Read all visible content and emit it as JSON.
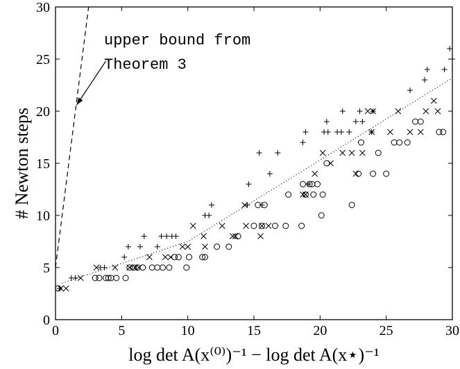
{
  "chart_data": {
    "type": "scatter",
    "xlabel": "log det A(x⁽⁰⁾)⁻¹ − log det A(x⋆)⁻¹",
    "ylabel": "# Newton steps",
    "xlim": [
      0,
      30
    ],
    "ylim": [
      0,
      30
    ],
    "x_ticks": [
      0,
      5,
      10,
      15,
      20,
      25,
      30
    ],
    "y_ticks": [
      0,
      5,
      10,
      15,
      20,
      25,
      30
    ],
    "x_tick_labels": [
      "0",
      "5",
      "10",
      "15",
      "20",
      "25",
      "30"
    ],
    "y_tick_labels": [
      "0",
      "5",
      "10",
      "15",
      "20",
      "25",
      "30"
    ],
    "grid": false,
    "annotation": {
      "lines": [
        "upper bound from",
        "Theorem 3"
      ],
      "arrow_from": [
        3.8,
        24.8
      ],
      "arrow_to": [
        1.6,
        20.6
      ]
    },
    "reference_lines": [
      {
        "style": "dashed",
        "points": [
          [
            0,
            5
          ],
          [
            2.5,
            30
          ]
        ]
      },
      {
        "style": "dotted",
        "points": [
          [
            0.5,
            3.5
          ],
          [
            10,
            7.5
          ],
          [
            20,
            15.3
          ],
          [
            30,
            23.2
          ]
        ]
      }
    ],
    "series": [
      {
        "marker": "plus",
        "points": [
          [
            0.3,
            3
          ],
          [
            1.2,
            4
          ],
          [
            1.5,
            4
          ],
          [
            3.4,
            5
          ],
          [
            3.7,
            5
          ],
          [
            5.2,
            6
          ],
          [
            5.5,
            7
          ],
          [
            6.4,
            7
          ],
          [
            6.7,
            8
          ],
          [
            7.7,
            7
          ],
          [
            8.0,
            8
          ],
          [
            8.4,
            8
          ],
          [
            8.8,
            8
          ],
          [
            9.1,
            8
          ],
          [
            11.3,
            10
          ],
          [
            11.6,
            10
          ],
          [
            11.8,
            11
          ],
          [
            14.5,
            11
          ],
          [
            14.6,
            13
          ],
          [
            15.4,
            16
          ],
          [
            15.6,
            11
          ],
          [
            16.2,
            14
          ],
          [
            16.8,
            16
          ],
          [
            18.7,
            17
          ],
          [
            18.9,
            18
          ],
          [
            19.1,
            13
          ],
          [
            20.3,
            18
          ],
          [
            20.5,
            19
          ],
          [
            20.6,
            18
          ],
          [
            21.3,
            18
          ],
          [
            21.6,
            18
          ],
          [
            21.7,
            20
          ],
          [
            22.2,
            18
          ],
          [
            22.7,
            19
          ],
          [
            23.0,
            20
          ],
          [
            23.2,
            19
          ],
          [
            23.9,
            18
          ],
          [
            24.0,
            20
          ],
          [
            26.8,
            22
          ],
          [
            27.9,
            23
          ],
          [
            28.1,
            24
          ],
          [
            29.4,
            24
          ],
          [
            29.8,
            26
          ],
          [
            30.0,
            25
          ]
        ]
      },
      {
        "marker": "cross",
        "points": [
          [
            0.4,
            3
          ],
          [
            0.8,
            3
          ],
          [
            1.9,
            4
          ],
          [
            3.1,
            5
          ],
          [
            4.5,
            5
          ],
          [
            5.6,
            5
          ],
          [
            6.0,
            5
          ],
          [
            6.3,
            5
          ],
          [
            7.1,
            6
          ],
          [
            8.3,
            6
          ],
          [
            8.7,
            6
          ],
          [
            9.6,
            7
          ],
          [
            10.0,
            7
          ],
          [
            10.4,
            9
          ],
          [
            11.2,
            8
          ],
          [
            11.3,
            7
          ],
          [
            12.6,
            9
          ],
          [
            13.4,
            8
          ],
          [
            13.6,
            8
          ],
          [
            14.3,
            11
          ],
          [
            14.4,
            9
          ],
          [
            15.5,
            8
          ],
          [
            15.6,
            9
          ],
          [
            16.1,
            9
          ],
          [
            18.7,
            12
          ],
          [
            18.9,
            12
          ],
          [
            19.6,
            14
          ],
          [
            20.2,
            16
          ],
          [
            20.8,
            15
          ],
          [
            21.7,
            16
          ],
          [
            22.4,
            16
          ],
          [
            22.7,
            14
          ],
          [
            23.2,
            16
          ],
          [
            23.6,
            20
          ],
          [
            23.9,
            18
          ],
          [
            24.0,
            20
          ],
          [
            25.3,
            18
          ],
          [
            25.9,
            20
          ],
          [
            26.8,
            18
          ],
          [
            27.6,
            18
          ],
          [
            28.0,
            20
          ],
          [
            28.6,
            21
          ],
          [
            28.9,
            20
          ]
        ]
      },
      {
        "marker": "circle",
        "points": [
          [
            0.2,
            3
          ],
          [
            3.0,
            4
          ],
          [
            3.3,
            4
          ],
          [
            3.8,
            4
          ],
          [
            4.0,
            4
          ],
          [
            4.2,
            4
          ],
          [
            4.6,
            4
          ],
          [
            5.3,
            4
          ],
          [
            5.6,
            5
          ],
          [
            5.9,
            5
          ],
          [
            6.2,
            5
          ],
          [
            6.6,
            5
          ],
          [
            7.3,
            5
          ],
          [
            7.7,
            5
          ],
          [
            8.1,
            5
          ],
          [
            8.6,
            5
          ],
          [
            9.0,
            6
          ],
          [
            9.3,
            6
          ],
          [
            9.9,
            5
          ],
          [
            10.1,
            6
          ],
          [
            11.1,
            6
          ],
          [
            11.3,
            6
          ],
          [
            12.2,
            7
          ],
          [
            13.1,
            7
          ],
          [
            13.8,
            8
          ],
          [
            15.0,
            9
          ],
          [
            15.3,
            11
          ],
          [
            15.6,
            9
          ],
          [
            15.8,
            11
          ],
          [
            16.6,
            9
          ],
          [
            17.4,
            9
          ],
          [
            17.6,
            12
          ],
          [
            18.6,
            9
          ],
          [
            18.7,
            13
          ],
          [
            18.9,
            12
          ],
          [
            19.2,
            13
          ],
          [
            19.4,
            13
          ],
          [
            19.5,
            12
          ],
          [
            19.8,
            13
          ],
          [
            20.1,
            10
          ],
          [
            20.2,
            12
          ],
          [
            20.5,
            15
          ],
          [
            22.4,
            11
          ],
          [
            22.9,
            14
          ],
          [
            23.1,
            17
          ],
          [
            24.0,
            14
          ],
          [
            24.4,
            16
          ],
          [
            25.0,
            14
          ],
          [
            25.6,
            17
          ],
          [
            26.0,
            17
          ],
          [
            26.6,
            17
          ],
          [
            27.2,
            19
          ],
          [
            27.6,
            19
          ],
          [
            29.0,
            18
          ],
          [
            29.3,
            18
          ]
        ]
      }
    ]
  }
}
